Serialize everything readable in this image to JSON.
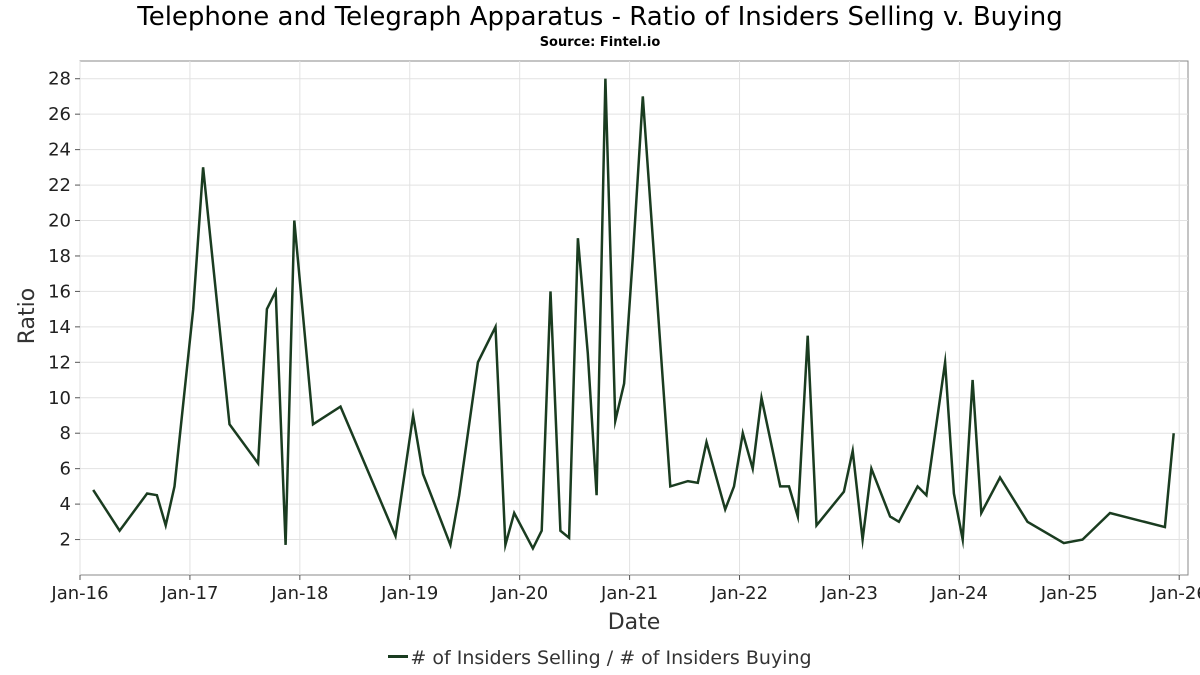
{
  "chart_data": {
    "type": "line",
    "title": "Telephone and Telegraph Apparatus - Ratio of Insiders Selling v. Buying",
    "subtitle": "Source: Fintel.io",
    "xlabel": "Date",
    "ylabel": "Ratio",
    "ylim": [
      0,
      29
    ],
    "xlim": [
      2016.0,
      2026.08
    ],
    "yticks": [
      2,
      4,
      6,
      8,
      10,
      12,
      14,
      16,
      18,
      20,
      22,
      24,
      26,
      28
    ],
    "xticks": [
      {
        "label": "Jan-16",
        "value": 2016.0
      },
      {
        "label": "Jan-17",
        "value": 2017.0
      },
      {
        "label": "Jan-18",
        "value": 2018.0
      },
      {
        "label": "Jan-19",
        "value": 2019.0
      },
      {
        "label": "Jan-20",
        "value": 2020.0
      },
      {
        "label": "Jan-21",
        "value": 2021.0
      },
      {
        "label": "Jan-22",
        "value": 2022.0
      },
      {
        "label": "Jan-23",
        "value": 2023.0
      },
      {
        "label": "Jan-24",
        "value": 2024.0
      },
      {
        "label": "Jan-25",
        "value": 2025.0
      },
      {
        "label": "Jan-26",
        "value": 2026.0
      }
    ],
    "grid": true,
    "legend_position": "bottom",
    "series": [
      {
        "name": "# of Insiders Selling / # of Insiders Buying",
        "color": "#1a3c20",
        "points": [
          [
            2016.12,
            4.8
          ],
          [
            2016.36,
            2.5
          ],
          [
            2016.61,
            4.6
          ],
          [
            2016.7,
            4.5
          ],
          [
            2016.78,
            2.8
          ],
          [
            2016.86,
            5.0
          ],
          [
            2017.03,
            15.0
          ],
          [
            2017.12,
            23.0
          ],
          [
            2017.36,
            8.5
          ],
          [
            2017.62,
            6.3
          ],
          [
            2017.7,
            15.0
          ],
          [
            2017.78,
            16.0
          ],
          [
            2017.87,
            1.7
          ],
          [
            2017.95,
            20.0
          ],
          [
            2018.12,
            8.5
          ],
          [
            2018.37,
            9.5
          ],
          [
            2018.87,
            2.2
          ],
          [
            2019.03,
            9.0
          ],
          [
            2019.12,
            5.7
          ],
          [
            2019.37,
            1.7
          ],
          [
            2019.45,
            4.5
          ],
          [
            2019.62,
            12.0
          ],
          [
            2019.78,
            14.0
          ],
          [
            2019.87,
            1.7
          ],
          [
            2019.95,
            3.5
          ],
          [
            2020.12,
            1.5
          ],
          [
            2020.2,
            2.5
          ],
          [
            2020.28,
            16.0
          ],
          [
            2020.37,
            2.5
          ],
          [
            2020.45,
            2.1
          ],
          [
            2020.53,
            19.0
          ],
          [
            2020.62,
            12.5
          ],
          [
            2020.7,
            4.5
          ],
          [
            2020.78,
            28.0
          ],
          [
            2020.87,
            8.7
          ],
          [
            2020.95,
            10.8
          ],
          [
            2021.03,
            18.0
          ],
          [
            2021.12,
            27.0
          ],
          [
            2021.37,
            5.0
          ],
          [
            2021.53,
            5.3
          ],
          [
            2021.62,
            5.2
          ],
          [
            2021.7,
            7.5
          ],
          [
            2021.87,
            3.7
          ],
          [
            2021.95,
            5.0
          ],
          [
            2022.03,
            8.0
          ],
          [
            2022.12,
            6.0
          ],
          [
            2022.2,
            10.0
          ],
          [
            2022.37,
            5.0
          ],
          [
            2022.45,
            5.0
          ],
          [
            2022.53,
            3.3
          ],
          [
            2022.62,
            13.5
          ],
          [
            2022.7,
            2.8
          ],
          [
            2022.95,
            4.7
          ],
          [
            2023.03,
            7.0
          ],
          [
            2023.12,
            2.0
          ],
          [
            2023.2,
            6.0
          ],
          [
            2023.37,
            3.3
          ],
          [
            2023.45,
            3.0
          ],
          [
            2023.62,
            5.0
          ],
          [
            2023.7,
            4.5
          ],
          [
            2023.87,
            12.0
          ],
          [
            2023.95,
            4.6
          ],
          [
            2024.03,
            2.0
          ],
          [
            2024.12,
            11.0
          ],
          [
            2024.2,
            3.5
          ],
          [
            2024.37,
            5.5
          ],
          [
            2024.62,
            3.0
          ],
          [
            2024.95,
            1.8
          ],
          [
            2025.12,
            2.0
          ],
          [
            2025.37,
            3.5
          ],
          [
            2025.87,
            2.7
          ],
          [
            2025.95,
            8.0
          ]
        ]
      }
    ]
  }
}
